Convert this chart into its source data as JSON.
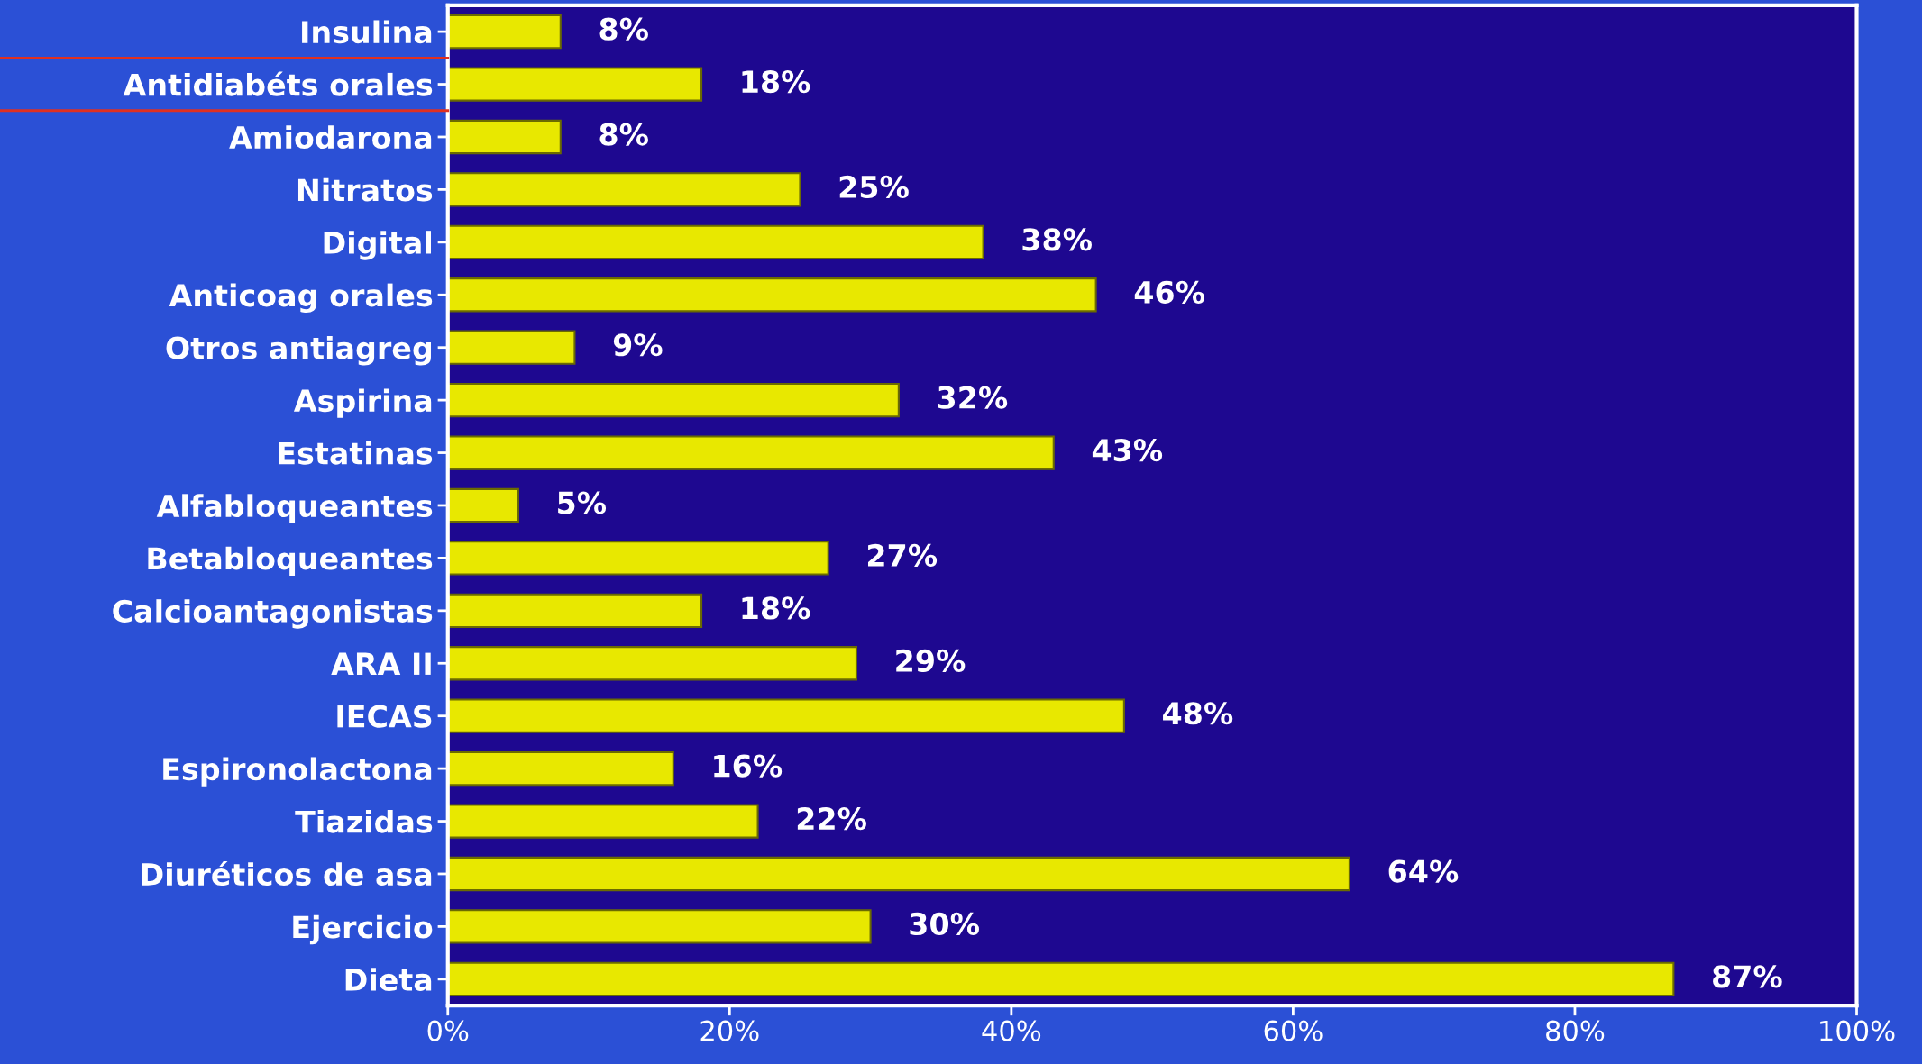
{
  "chart_data": {
    "type": "bar",
    "orientation": "horizontal",
    "categories": [
      "Insulina",
      "Antidiabéts orales",
      "Amiodarona",
      "Nitratos",
      "Digital",
      "Anticoag orales",
      "Otros antiagreg",
      "Aspirina",
      "Estatinas",
      "Alfabloqueantes",
      "Betabloqueantes",
      "Calcioantagonistas",
      "ARA II",
      "IECAS",
      "Espironolactona",
      "Tiazidas",
      "Diuréticos de asa",
      "Ejercicio",
      "Dieta"
    ],
    "values": [
      8,
      18,
      8,
      25,
      38,
      46,
      9,
      32,
      43,
      5,
      27,
      18,
      29,
      48,
      16,
      22,
      64,
      30,
      87
    ],
    "value_labels": [
      "8%",
      "18%",
      "8%",
      "25%",
      "38%",
      "46%",
      "9%",
      "32%",
      "43%",
      "5%",
      "27%",
      "18%",
      "29%",
      "48%",
      "16%",
      "22%",
      "64%",
      "30%",
      "87%"
    ],
    "color": "#e8e800",
    "xlim": [
      0,
      100
    ],
    "xticks": [
      {
        "value": 0,
        "label": "0%"
      },
      {
        "value": 20,
        "label": "20%"
      },
      {
        "value": 40,
        "label": "40%"
      },
      {
        "value": 60,
        "label": "60%"
      },
      {
        "value": 80,
        "label": "80%"
      },
      {
        "value": 100,
        "label": "100%"
      }
    ],
    "grid": false,
    "legend": false
  }
}
